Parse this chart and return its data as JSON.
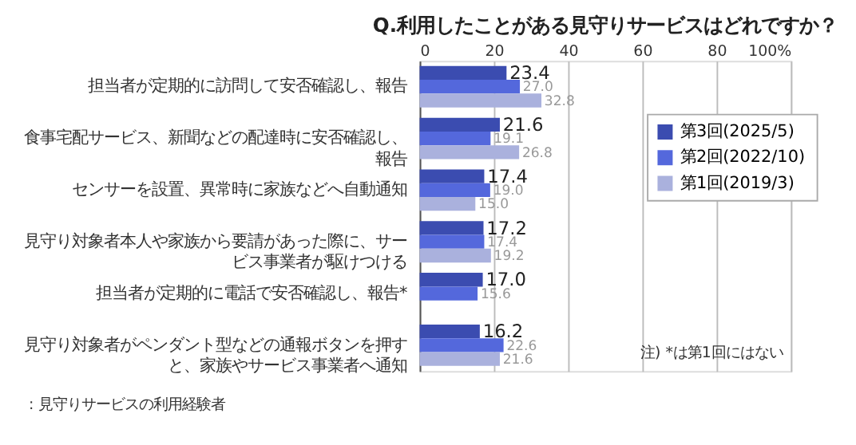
{
  "chart_data": {
    "type": "bar",
    "orientation": "horizontal",
    "title": "Q.利用したことがある見守りサービスはどれですか？",
    "categories": [
      "担当者が定期的に訪問して安否確認し、報告",
      "食事宅配サービス、新聞などの配達時に安否確認し、報告",
      "センサーを設置、異常時に家族などへ自動通知",
      "見守り対象者本人や家族から要請があった際に、サービス事業者が駆けつける",
      "担当者が定期的に電話で安否確認し、報告*",
      "見守り対象者がペンダント型などの通報ボタンを押すと、家族やサービス事業者へ通知"
    ],
    "series": [
      {
        "name": "第3回(2025/5)",
        "color": "#3b4cb0",
        "values": [
          23.4,
          21.6,
          17.4,
          17.2,
          17.0,
          16.2
        ],
        "value_labels": [
          "23.4",
          "21.6",
          "17.4",
          "17.2",
          "17.0",
          "16.2"
        ]
      },
      {
        "name": "第2回(2022/10)",
        "color": "#5468dc",
        "values": [
          27.0,
          19.1,
          19.0,
          17.4,
          15.6,
          22.6
        ],
        "value_labels": [
          "27.0",
          "19.1",
          "19.0",
          "17.4",
          "15.6",
          "22.6"
        ]
      },
      {
        "name": "第1回(2019/3)",
        "color": "#aab1dd",
        "values": [
          32.8,
          26.8,
          15.0,
          19.2,
          null,
          21.6
        ],
        "value_labels": [
          "32.8",
          "26.8",
          "15.0",
          "19.2",
          null,
          "21.6"
        ]
      }
    ],
    "xlim": [
      0,
      100
    ],
    "xticks": [
      0,
      20,
      40,
      60,
      80,
      {
        "value": 100,
        "label": "100%"
      }
    ],
    "grid": "x",
    "legend": "top right",
    "annotations": [
      "注) *は第1回にはない",
      ": 見守りサービスの利用経験者"
    ]
  }
}
